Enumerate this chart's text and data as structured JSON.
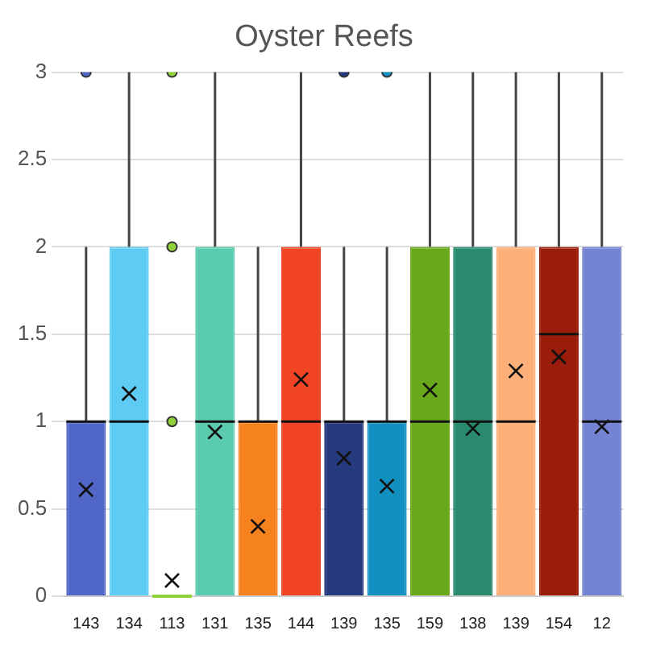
{
  "chart_data": {
    "type": "box",
    "title": "Oyster Reefs",
    "categories": [
      "143",
      "134",
      "113",
      "131",
      "135",
      "144",
      "139",
      "135",
      "159",
      "138",
      "139",
      "154",
      "12"
    ],
    "colors": [
      "#5067c8",
      "#5ecbf2",
      "#8fd13a",
      "#5bcbaf",
      "#f5821f",
      "#f04424",
      "#253a7c",
      "#1190c0",
      "#6aa81b",
      "#2a8a6e",
      "#fdb07a",
      "#9a1c0b",
      "#7484d2"
    ],
    "boxes": [
      {
        "low": 0,
        "q1": 0,
        "median": 1,
        "q3": 1,
        "high": 2,
        "mean": 0.61,
        "outliers": [
          3
        ]
      },
      {
        "low": 0,
        "q1": 0,
        "median": 1,
        "q3": 2,
        "high": 3,
        "mean": 1.16
      },
      {
        "low": 0,
        "q1": 0,
        "median": 0,
        "q3": 0,
        "high": 0,
        "mean": 0.09,
        "outliers": [
          1,
          2,
          3
        ]
      },
      {
        "low": 0,
        "q1": 0,
        "median": 1,
        "q3": 2,
        "high": 3,
        "mean": 0.94
      },
      {
        "low": 0,
        "q1": 0,
        "median": 1,
        "q3": 1,
        "high": 2,
        "mean": 0.4
      },
      {
        "low": 0,
        "q1": 0,
        "median": 1,
        "q3": 2,
        "high": 3,
        "mean": 1.24
      },
      {
        "low": 0,
        "q1": 0,
        "median": 1,
        "q3": 1,
        "high": 2,
        "mean": 0.79,
        "outliers": [
          3
        ]
      },
      {
        "low": 0,
        "q1": 0,
        "median": 1,
        "q3": 1,
        "high": 2,
        "mean": 0.63,
        "outliers": [
          3
        ]
      },
      {
        "low": 0,
        "q1": 0,
        "median": 1,
        "q3": 2,
        "high": 3,
        "mean": 1.18
      },
      {
        "low": 0,
        "q1": 0,
        "median": 1,
        "q3": 2,
        "high": 3,
        "mean": 0.96
      },
      {
        "low": 0,
        "q1": 0,
        "median": 1,
        "q3": 2,
        "high": 3,
        "mean": 1.29
      },
      {
        "low": 0,
        "q1": 0,
        "median": 1.5,
        "q3": 2,
        "high": 3,
        "mean": 1.37
      },
      {
        "low": 0,
        "q1": 0,
        "median": 1,
        "q3": 2,
        "high": 3,
        "mean": 0.97
      }
    ],
    "ylim": [
      0,
      3
    ],
    "yticks": [
      0,
      0.5,
      1,
      1.5,
      2,
      2.5,
      3
    ],
    "grid": "y"
  }
}
